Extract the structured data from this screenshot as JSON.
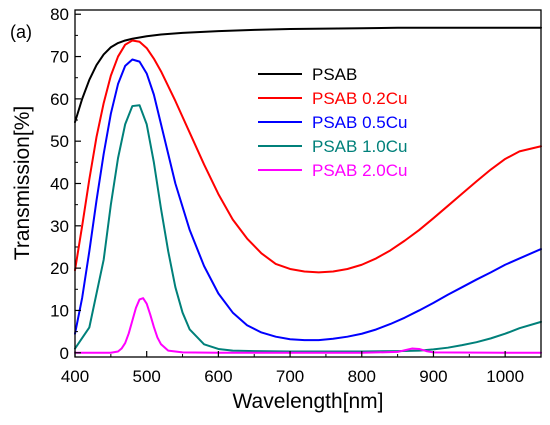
{
  "chart_data": {
    "type": "line",
    "panel_label": "(a)",
    "xlabel": "Wavelength[nm]",
    "ylabel": "Transmission[%]",
    "xlim": [
      400,
      1050
    ],
    "ylim": [
      -1,
      81
    ],
    "x_ticks": [
      400,
      500,
      600,
      700,
      800,
      900,
      1000
    ],
    "y_ticks": [
      0,
      10,
      20,
      30,
      40,
      50,
      60,
      70,
      80
    ],
    "grid": false,
    "legend_position": "top-right",
    "series": [
      {
        "name": "PSAB",
        "color": "#000000",
        "x": [
          400,
          410,
          420,
          430,
          440,
          450,
          460,
          470,
          480,
          490,
          500,
          520,
          550,
          600,
          650,
          700,
          750,
          800,
          850,
          900,
          950,
          1000,
          1050
        ],
        "y": [
          54.5,
          60,
          64.5,
          68,
          70.5,
          72.2,
          73.2,
          73.8,
          74.2,
          74.5,
          74.8,
          75.2,
          75.6,
          76,
          76.3,
          76.5,
          76.6,
          76.7,
          76.8,
          76.8,
          76.8,
          76.8,
          76.8
        ]
      },
      {
        "name": "PSAB 0.2Cu",
        "color": "#ff0000",
        "x": [
          400,
          410,
          420,
          430,
          440,
          450,
          460,
          470,
          480,
          490,
          500,
          510,
          520,
          540,
          560,
          580,
          600,
          620,
          640,
          660,
          680,
          700,
          720,
          740,
          760,
          780,
          800,
          820,
          840,
          860,
          880,
          900,
          920,
          940,
          960,
          980,
          1000,
          1020,
          1050
        ],
        "y": [
          19.5,
          30,
          41,
          51,
          59,
          65.5,
          70,
          72.8,
          73.8,
          73.5,
          72,
          69.5,
          66.5,
          59.5,
          52,
          44.5,
          37.5,
          31.5,
          27,
          23.5,
          21,
          19.8,
          19.2,
          19,
          19.2,
          19.8,
          20.8,
          22.3,
          24.2,
          26.5,
          29,
          31.8,
          34.7,
          37.6,
          40.5,
          43.3,
          45.8,
          47.6,
          48.8
        ]
      },
      {
        "name": "PSAB 0.5Cu",
        "color": "#0000ff",
        "x": [
          400,
          410,
          420,
          430,
          440,
          450,
          460,
          470,
          480,
          490,
          500,
          510,
          520,
          530,
          540,
          560,
          580,
          600,
          620,
          640,
          660,
          680,
          700,
          720,
          740,
          760,
          780,
          800,
          820,
          840,
          860,
          880,
          900,
          920,
          940,
          960,
          980,
          1000,
          1020,
          1050
        ],
        "y": [
          4.5,
          13,
          24,
          36,
          47,
          56.5,
          63.5,
          67.8,
          69.3,
          68.8,
          66,
          61,
          54,
          47,
          40,
          29,
          20.5,
          14,
          9.5,
          6.5,
          4.8,
          3.8,
          3.2,
          3,
          3,
          3.3,
          3.8,
          4.5,
          5.5,
          6.8,
          8.3,
          10,
          11.8,
          13.7,
          15.5,
          17.3,
          19,
          20.8,
          22.3,
          24.5
        ]
      },
      {
        "name": "PSAB 1.0Cu",
        "color": "#00807a",
        "x": [
          400,
          420,
          440,
          450,
          460,
          470,
          480,
          490,
          500,
          510,
          520,
          530,
          540,
          550,
          560,
          580,
          600,
          620,
          650,
          700,
          800,
          850,
          880,
          900,
          920,
          940,
          960,
          980,
          1000,
          1020,
          1050
        ],
        "y": [
          1,
          6,
          22,
          35,
          46,
          54,
          58.3,
          58.5,
          54,
          45,
          34,
          24,
          15.5,
          9.5,
          5.5,
          2,
          0.9,
          0.5,
          0.4,
          0.3,
          0.3,
          0.4,
          0.5,
          0.8,
          1.2,
          1.8,
          2.5,
          3.4,
          4.5,
          5.8,
          7.3
        ]
      },
      {
        "name": "PSAB 2.0Cu",
        "color": "#ff00ff",
        "x": [
          400,
          450,
          460,
          465,
          470,
          475,
          480,
          485,
          490,
          495,
          500,
          505,
          510,
          515,
          520,
          530,
          550,
          600,
          700,
          800,
          850,
          860,
          870,
          880,
          890,
          900,
          1000,
          1050
        ],
        "y": [
          0,
          0,
          0.3,
          1,
          2.3,
          4.6,
          7.6,
          10.6,
          12.6,
          12.9,
          11.6,
          9,
          6.1,
          3.6,
          2,
          0.5,
          0.1,
          0,
          0,
          0,
          0.2,
          0.6,
          1,
          0.9,
          0.4,
          0.1,
          0,
          0
        ]
      }
    ]
  }
}
